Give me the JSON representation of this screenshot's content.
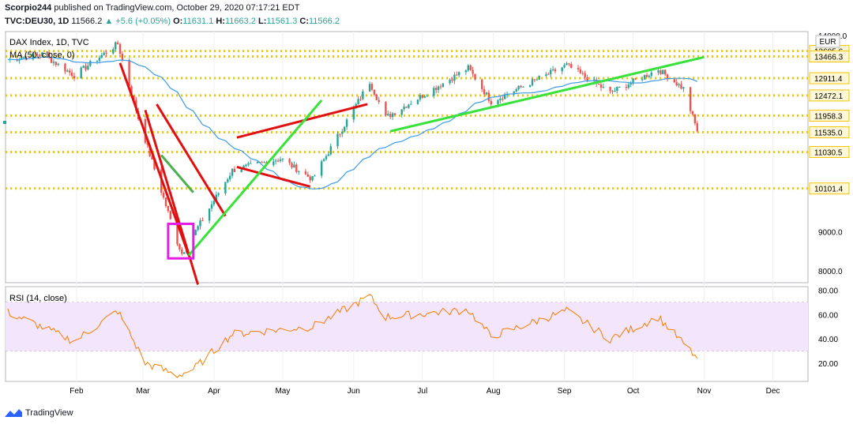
{
  "header": {
    "author": "Scorpio244",
    "published_text": "published on TradingView.com, October 29, 2020 07:17:21 EDT",
    "symbol": "TVC:DEU30, 1D",
    "last": "11566.2",
    "change_arrow": "▲",
    "change": "+5.6 (+0.05%)",
    "open_label": "O:",
    "open": "11631.1",
    "high_label": "H:",
    "high": "11663.2",
    "low_label": "L:",
    "low": "11561.3",
    "close_label": "C:",
    "close": "11566.2"
  },
  "logo_text": "TradingView",
  "colors": {
    "up": "#26a69a",
    "down": "#ef5350",
    "ma": "#3d9be9",
    "rsi": "#f57c00",
    "rsi_band": "#f3e5fb",
    "level": "#f5c400",
    "red_line": "#e01010",
    "green_line": "#39e23b",
    "magenta_box": "#e61be6"
  },
  "chart_data": [
    {
      "type": "candlestick",
      "title": "DAX Index, 1D, TVC",
      "indicator_label": "MA (50, close, 0)",
      "currency": "EUR",
      "x_ticks": [
        "Feb",
        "Mar",
        "Apr",
        "May",
        "Jun",
        "Jul",
        "Aug",
        "Sep",
        "Oct",
        "Nov",
        "Dec"
      ],
      "y_ticks": [
        "14000.0",
        "9000.0",
        "8000.0"
      ],
      "ylim": [
        7700,
        14100
      ],
      "price_levels": [
        13605.6,
        13466.3,
        12911.4,
        12472.1,
        11958.3,
        11535.0,
        11030.5,
        10101.4
      ],
      "price_level_labels": [
        "13605.6",
        "13466.3",
        "12911.4",
        "12472.1",
        "11958.3",
        "11535.0",
        "11030.5",
        "10101.4"
      ],
      "key_points": [
        {
          "date": "2020-01-02",
          "close": 13385
        },
        {
          "date": "2020-01-17",
          "close": 13526
        },
        {
          "date": "2020-01-31",
          "close": 12982
        },
        {
          "date": "2020-02-19",
          "close": 13789
        },
        {
          "date": "2020-02-28",
          "close": 11890
        },
        {
          "date": "2020-03-16",
          "close": 8742
        },
        {
          "date": "2020-03-18",
          "close": 8442
        },
        {
          "date": "2020-04-09",
          "close": 10565
        },
        {
          "date": "2020-04-30",
          "close": 10862
        },
        {
          "date": "2020-05-14",
          "close": 10337
        },
        {
          "date": "2020-06-08",
          "close": 12820
        },
        {
          "date": "2020-06-15",
          "close": 11911
        },
        {
          "date": "2020-07-21",
          "close": 13171
        },
        {
          "date": "2020-07-31",
          "close": 12313
        },
        {
          "date": "2020-09-02",
          "close": 13243
        },
        {
          "date": "2020-09-21",
          "close": 12542
        },
        {
          "date": "2020-10-12",
          "close": 13139
        },
        {
          "date": "2020-10-23",
          "close": 12645
        },
        {
          "date": "2020-10-29",
          "close": 11566.2
        }
      ]
    },
    {
      "type": "line",
      "title": "RSI (14, close)",
      "y_ticks": [
        "80.00",
        "60.00",
        "40.00",
        "20.00"
      ],
      "ylim": [
        5,
        83
      ],
      "band": [
        30,
        70
      ],
      "key_points": [
        {
          "date": "2020-01-02",
          "value": 62
        },
        {
          "date": "2020-01-31",
          "value": 38
        },
        {
          "date": "2020-02-19",
          "value": 63
        },
        {
          "date": "2020-03-02",
          "value": 20
        },
        {
          "date": "2020-03-16",
          "value": 10
        },
        {
          "date": "2020-03-23",
          "value": 15
        },
        {
          "date": "2020-04-09",
          "value": 44
        },
        {
          "date": "2020-05-14",
          "value": 50
        },
        {
          "date": "2020-06-08",
          "value": 75
        },
        {
          "date": "2020-06-15",
          "value": 58
        },
        {
          "date": "2020-07-21",
          "value": 64
        },
        {
          "date": "2020-07-31",
          "value": 42
        },
        {
          "date": "2020-09-02",
          "value": 63
        },
        {
          "date": "2020-09-21",
          "value": 40
        },
        {
          "date": "2020-10-12",
          "value": 58
        },
        {
          "date": "2020-10-29",
          "value": 24
        }
      ]
    }
  ]
}
